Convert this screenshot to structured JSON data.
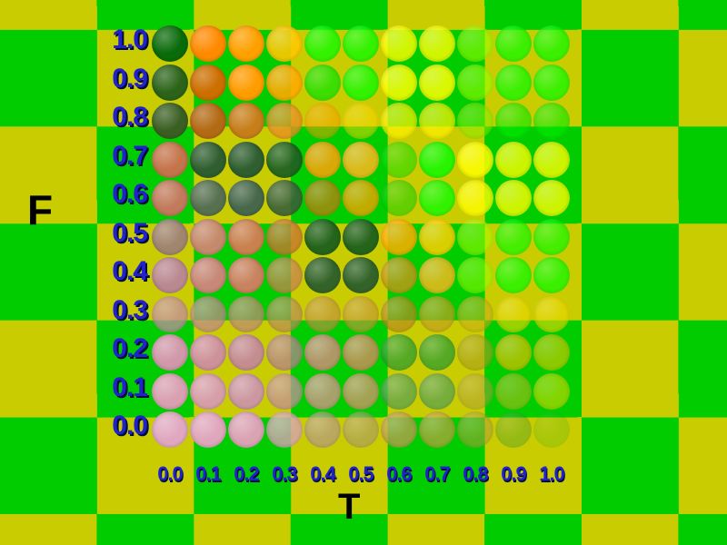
{
  "background": {
    "checker_green": "#00CC00",
    "checker_yellow": "#C9CC00"
  },
  "text_colors": {
    "tick_blue": "#2222CC",
    "tick_shadow": "#000C3C",
    "axis_black": "#000000"
  },
  "chart_data": {
    "type": "heatmap",
    "title": "",
    "xlabel": "T",
    "ylabel": "F",
    "x_ticks": [
      "0.0",
      "0.1",
      "0.2",
      "0.3",
      "0.4",
      "0.5",
      "0.6",
      "0.7",
      "0.8",
      "0.9",
      "1.0"
    ],
    "y_ticks": [
      "1.0",
      "0.9",
      "0.8",
      "0.7",
      "0.6",
      "0.5",
      "0.4",
      "0.3",
      "0.2",
      "0.1",
      "0.0"
    ],
    "legend": "none",
    "grid": "off",
    "note": "each cell is a shaded sphere; value pairs are [fill_hex, opacity]",
    "rows": [
      {
        "f": "1.0",
        "dots": [
          [
            "#0A6B0A",
            1
          ],
          [
            "#FF8A00",
            1
          ],
          [
            "#FFA000",
            1
          ],
          [
            "#FFC800",
            0.9
          ],
          [
            "#00FF00",
            0.75
          ],
          [
            "#00FF00",
            0.75
          ],
          [
            "#FFFF00",
            0.82
          ],
          [
            "#FFFF00",
            0.82
          ],
          [
            "#99FF00",
            0.6
          ],
          [
            "#00FF00",
            0.7
          ],
          [
            "#00FF00",
            0.7
          ]
        ]
      },
      {
        "f": "0.9",
        "dots": [
          [
            "#2B6318",
            1
          ],
          [
            "#CC6E00",
            1
          ],
          [
            "#FF9C00",
            1
          ],
          [
            "#FFAA00",
            0.9
          ],
          [
            "#00E600",
            0.7
          ],
          [
            "#00FF00",
            0.75
          ],
          [
            "#FFFF00",
            0.85
          ],
          [
            "#FFFF00",
            0.85
          ],
          [
            "#99FF00",
            0.6
          ],
          [
            "#00FF00",
            0.7
          ],
          [
            "#00FF00",
            0.7
          ]
        ]
      },
      {
        "f": "0.8",
        "dots": [
          [
            "#3A5F22",
            1
          ],
          [
            "#B36A14",
            1
          ],
          [
            "#C77E1A",
            1
          ],
          [
            "#E89122",
            0.8
          ],
          [
            "#FFA000",
            0.5
          ],
          [
            "#FFD800",
            0.5
          ],
          [
            "#FFF200",
            0.72
          ],
          [
            "#FFF200",
            0.72
          ],
          [
            "#88EE00",
            0.55
          ],
          [
            "#00EE00",
            0.6
          ],
          [
            "#00EE00",
            0.6
          ]
        ]
      },
      {
        "f": "0.7",
        "dots": [
          [
            "#C4744A",
            1
          ],
          [
            "#2F5E2F",
            1
          ],
          [
            "#2F5E2F",
            1
          ],
          [
            "#1F6220",
            0.95
          ],
          [
            "#FFA30A",
            0.85
          ],
          [
            "#FFB81E",
            0.85
          ],
          [
            "#00E000",
            0.5
          ],
          [
            "#00FF00",
            0.8
          ],
          [
            "#FFFF00",
            0.85
          ],
          [
            "#FFFF00",
            0.8
          ],
          [
            "#FFFF00",
            0.8
          ]
        ]
      },
      {
        "f": "0.6",
        "dots": [
          [
            "#C17B5C",
            1
          ],
          [
            "#57704F",
            1
          ],
          [
            "#47684A",
            1
          ],
          [
            "#3A6138",
            0.9
          ],
          [
            "#BF7F10",
            0.75
          ],
          [
            "#F0A500",
            0.8
          ],
          [
            "#00D200",
            0.5
          ],
          [
            "#00FF00",
            0.75
          ],
          [
            "#FFFF00",
            0.8
          ],
          [
            "#FFFF00",
            0.8
          ],
          [
            "#FFFF00",
            0.8
          ]
        ]
      },
      {
        "f": "0.5",
        "dots": [
          [
            "#9E8275",
            0.95
          ],
          [
            "#C58A6B",
            1
          ],
          [
            "#C9824F",
            1
          ],
          [
            "#C87830",
            0.8
          ],
          [
            "#1D5F1D",
            0.95
          ],
          [
            "#1D5F1D",
            0.95
          ],
          [
            "#FFAE00",
            0.85
          ],
          [
            "#FFD000",
            0.85
          ],
          [
            "#AAFF00",
            0.55
          ],
          [
            "#00FF00",
            0.65
          ],
          [
            "#00FF00",
            0.65
          ]
        ]
      },
      {
        "f": "0.4",
        "dots": [
          [
            "#BA8890",
            1
          ],
          [
            "#C78877",
            1
          ],
          [
            "#C8835E",
            1
          ],
          [
            "#C8854E",
            0.75
          ],
          [
            "#2B5E2B",
            0.95
          ],
          [
            "#2B5E2B",
            0.95
          ],
          [
            "#C89818",
            0.8
          ],
          [
            "#FFB81E",
            0.8
          ],
          [
            "#99FF00",
            0.55
          ],
          [
            "#00FF00",
            0.7
          ],
          [
            "#00FF00",
            0.7
          ]
        ]
      },
      {
        "f": "0.3",
        "dots": [
          [
            "#C38CA0",
            0.75
          ],
          [
            "#BF8A88",
            0.75
          ],
          [
            "#BD8C70",
            0.75
          ],
          [
            "#B98E58",
            0.7
          ],
          [
            "#C19140",
            0.65
          ],
          [
            "#C49838",
            0.65
          ],
          [
            "#B88C20",
            0.7
          ],
          [
            "#C4A020",
            0.7
          ],
          [
            "#C8B018",
            0.6
          ],
          [
            "#E8D800",
            0.65
          ],
          [
            "#E8D800",
            0.65
          ]
        ]
      },
      {
        "f": "0.2",
        "dots": [
          [
            "#D098A8",
            1
          ],
          [
            "#CD9299",
            1
          ],
          [
            "#C48D90",
            1
          ],
          [
            "#B5838D",
            0.75
          ],
          [
            "#C29272",
            0.9
          ],
          [
            "#BC9455",
            0.9
          ],
          [
            "#2F9E2F",
            0.75
          ],
          [
            "#2F9E2F",
            0.75
          ],
          [
            "#A8A020",
            0.6
          ],
          [
            "#E0C000",
            0.7
          ],
          [
            "#E8C800",
            0.6
          ]
        ]
      },
      {
        "f": "0.1",
        "dots": [
          [
            "#D8A0B0",
            1
          ],
          [
            "#D69FA8",
            1
          ],
          [
            "#CC98A0",
            1
          ],
          [
            "#C39099",
            0.75
          ],
          [
            "#C59A7E",
            0.85
          ],
          [
            "#C09A62",
            0.85
          ],
          [
            "#55A055",
            0.7
          ],
          [
            "#55A055",
            0.7
          ],
          [
            "#B0A040",
            0.5
          ],
          [
            "#D4B820",
            0.5
          ],
          [
            "#EEDC00",
            0.55
          ]
        ]
      },
      {
        "f": "0.0",
        "dots": [
          [
            "#E0A8C0",
            1
          ],
          [
            "#DFA7BB",
            1
          ],
          [
            "#DAA3B4",
            1
          ],
          [
            "#D8A3B4",
            0.8
          ],
          [
            "#B39A85",
            0.7
          ],
          [
            "#AB9A6E",
            0.6
          ],
          [
            "#C09C50",
            0.75
          ],
          [
            "#C0A040",
            0.7
          ],
          [
            "#B0A038",
            0.55
          ],
          [
            "#3A9A3A",
            0.35
          ],
          [
            "#2AB42A",
            0.2
          ]
        ]
      }
    ]
  }
}
